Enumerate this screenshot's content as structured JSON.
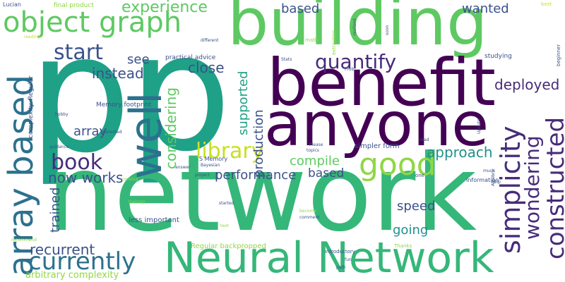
{
  "words": {
    "p": "p",
    "p2": "p",
    "network": "network",
    "building": "building",
    "benefit": "benefit",
    "anyone": "anyone",
    "neural_network": "Neural Network",
    "well": "well",
    "array_based": "array based",
    "object_graph": "object graph",
    "currently": "currently",
    "good": "good",
    "library": "library",
    "book": "book",
    "simplicity": "simplicity",
    "constructed": "constructed",
    "wondering": "wondering",
    "quantify": "quantify",
    "start": "start",
    "experience": "experience",
    "deployed": "deployed",
    "instead": "instead",
    "now_works": "now works",
    "recurrent": "recurrent",
    "performance": "performance",
    "approach": "approach",
    "compile": "compile",
    "production": "production",
    "supported": "supported",
    "considering": "considering",
    "array": "array",
    "close": "close",
    "see": "see",
    "trained": "trained",
    "based": "based",
    "speed": "speed",
    "going": "going",
    "wanted": "wanted",
    "based_top": "based",
    "arbitrary_complexity": "arbitrary complexity",
    "regular_backpropped": "Regular backpropped",
    "less_important": "less important",
    "simpler_form": "simpler form",
    "memory_footprint": "Memory footprint",
    "practical_advice": "practical advice",
    "s_memory": "S Memory",
    "final_product": "final product",
    "lucian": "Lucian",
    "studying": "studying",
    "information": "Information",
    "introductory": "introductory",
    "complexity": "complexity",
    "regular": "Regular",
    "beginner": "beginner",
    "stats": "Stats",
    "math": "math",
    "extraction": "extraction",
    "realized": "realized",
    "soon": "soon",
    "best": "best",
    "different": "different",
    "reading": "reading",
    "prob": "Prob",
    "hobby": "hobby",
    "interested": "interested",
    "guidance": "guidance",
    "bayesian": "Bayesian",
    "answer": "answer",
    "project": "project",
    "cooking": "cooking",
    "training": "training",
    "started": "started",
    "please": "Please",
    "topics": "topics",
    "read": "read",
    "update": "Update",
    "algebra": "Algebra",
    "help": "help",
    "much": "much",
    "one": "one",
    "become": "become",
    "comment": "comment",
    "text": "text",
    "recommend": "recommend",
    "thanks": "Thanks",
    "fun": "fun",
    "path": "path"
  }
}
